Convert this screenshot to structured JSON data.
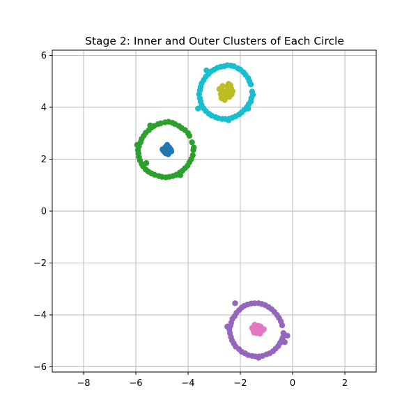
{
  "chart_data": {
    "type": "scatter",
    "title": "Stage 2: Inner and Outer Clusters of Each Circle",
    "xlabel": "",
    "ylabel": "",
    "xlim": [
      -9.2,
      3.2
    ],
    "ylim": [
      -6.2,
      6.2
    ],
    "xticks": [
      -8,
      -6,
      -4,
      -2,
      0,
      2
    ],
    "yticks": [
      -6,
      -4,
      -2,
      0,
      2,
      4,
      6
    ],
    "xtick_labels": [
      "−8",
      "−6",
      "−4",
      "−2",
      "0",
      "2"
    ],
    "ytick_labels": [
      "−6",
      "−4",
      "−2",
      "0",
      "2",
      "4",
      "6"
    ],
    "grid": true,
    "series": [
      {
        "role": "inner",
        "color": "#1f77b4",
        "points": [
          [
            -4.82,
            2.35
          ],
          [
            -4.75,
            2.42
          ],
          [
            -4.88,
            2.3
          ],
          [
            -4.7,
            2.28
          ],
          [
            -4.92,
            2.4
          ],
          [
            -4.78,
            2.5
          ],
          [
            -4.85,
            2.22
          ],
          [
            -4.66,
            2.36
          ],
          [
            -4.95,
            2.33
          ],
          [
            -4.8,
            2.55
          ],
          [
            -4.72,
            2.45
          ],
          [
            -4.9,
            2.27
          ],
          [
            -4.76,
            2.19
          ],
          [
            -4.64,
            2.3
          ],
          [
            -4.86,
            2.47
          ],
          [
            -4.98,
            2.38
          ],
          [
            -4.69,
            2.4
          ]
        ]
      },
      {
        "role": "outer",
        "color": "#2ca02c",
        "points": [
          [
            -3.8,
            2.35
          ],
          [
            -3.85,
            2.65
          ],
          [
            -3.95,
            2.9
          ],
          [
            -4.12,
            3.12
          ],
          [
            -4.35,
            3.28
          ],
          [
            -4.6,
            3.4
          ],
          [
            -4.88,
            3.42
          ],
          [
            -5.15,
            3.35
          ],
          [
            -5.4,
            3.22
          ],
          [
            -5.62,
            3.02
          ],
          [
            -5.78,
            2.78
          ],
          [
            -5.88,
            2.5
          ],
          [
            -5.9,
            2.22
          ],
          [
            -5.84,
            1.95
          ],
          [
            -5.72,
            1.72
          ],
          [
            -5.52,
            1.52
          ],
          [
            -5.28,
            1.4
          ],
          [
            -5.0,
            1.32
          ],
          [
            -4.72,
            1.32
          ],
          [
            -4.45,
            1.4
          ],
          [
            -4.22,
            1.55
          ],
          [
            -4.02,
            1.75
          ],
          [
            -3.88,
            2.0
          ],
          [
            -3.82,
            2.15
          ],
          [
            -4.0,
            3.0
          ],
          [
            -4.25,
            3.2
          ],
          [
            -4.5,
            3.35
          ],
          [
            -4.75,
            3.44
          ],
          [
            -5.05,
            3.38
          ],
          [
            -5.3,
            3.28
          ],
          [
            -5.5,
            3.12
          ],
          [
            -5.7,
            2.9
          ],
          [
            -5.82,
            2.65
          ],
          [
            -5.92,
            2.35
          ],
          [
            -5.88,
            2.08
          ],
          [
            -5.78,
            1.82
          ],
          [
            -5.62,
            1.6
          ],
          [
            -5.4,
            1.45
          ],
          [
            -5.12,
            1.35
          ],
          [
            -4.85,
            1.3
          ],
          [
            -4.58,
            1.35
          ],
          [
            -4.32,
            1.48
          ],
          [
            -4.12,
            1.65
          ],
          [
            -3.95,
            1.88
          ],
          [
            -3.78,
            2.45
          ],
          [
            -5.45,
            3.3
          ],
          [
            -4.3,
            1.38
          ],
          [
            -5.95,
            2.55
          ],
          [
            -5.6,
            1.85
          ]
        ]
      },
      {
        "role": "inner",
        "color": "#bcbd22",
        "points": [
          [
            -2.55,
            4.6
          ],
          [
            -2.48,
            4.68
          ],
          [
            -2.62,
            4.52
          ],
          [
            -2.4,
            4.55
          ],
          [
            -2.7,
            4.65
          ],
          [
            -2.5,
            4.8
          ],
          [
            -2.65,
            4.4
          ],
          [
            -2.35,
            4.72
          ],
          [
            -2.75,
            4.5
          ],
          [
            -2.45,
            4.9
          ],
          [
            -2.58,
            4.35
          ],
          [
            -2.3,
            4.62
          ],
          [
            -2.8,
            4.7
          ],
          [
            -2.52,
            4.45
          ],
          [
            -2.38,
            4.85
          ],
          [
            -2.68,
            4.82
          ],
          [
            -2.6,
            4.28
          ],
          [
            -2.42,
            4.4
          ],
          [
            -2.72,
            4.35
          ],
          [
            -2.33,
            4.5
          ]
        ]
      },
      {
        "role": "outer",
        "color": "#17becf",
        "points": [
          [
            -1.55,
            4.6
          ],
          [
            -1.6,
            4.88
          ],
          [
            -1.7,
            5.12
          ],
          [
            -1.88,
            5.35
          ],
          [
            -2.1,
            5.5
          ],
          [
            -2.35,
            5.6
          ],
          [
            -2.62,
            5.58
          ],
          [
            -2.88,
            5.52
          ],
          [
            -3.12,
            5.38
          ],
          [
            -3.32,
            5.18
          ],
          [
            -3.48,
            4.92
          ],
          [
            -3.55,
            4.65
          ],
          [
            -3.55,
            4.35
          ],
          [
            -3.48,
            4.08
          ],
          [
            -3.32,
            3.85
          ],
          [
            -3.1,
            3.68
          ],
          [
            -2.85,
            3.58
          ],
          [
            -2.58,
            3.55
          ],
          [
            -2.3,
            3.6
          ],
          [
            -2.05,
            3.72
          ],
          [
            -1.85,
            3.9
          ],
          [
            -1.68,
            4.12
          ],
          [
            -1.58,
            4.35
          ],
          [
            -1.65,
            5.0
          ],
          [
            -1.8,
            5.25
          ],
          [
            -2.0,
            5.45
          ],
          [
            -2.25,
            5.58
          ],
          [
            -2.5,
            5.62
          ],
          [
            -2.75,
            5.56
          ],
          [
            -3.0,
            5.45
          ],
          [
            -3.22,
            5.28
          ],
          [
            -3.4,
            5.05
          ],
          [
            -3.52,
            4.78
          ],
          [
            -3.58,
            4.5
          ],
          [
            -3.52,
            4.22
          ],
          [
            -3.4,
            3.95
          ],
          [
            -3.2,
            3.75
          ],
          [
            -2.95,
            3.62
          ],
          [
            -2.7,
            3.55
          ],
          [
            -2.42,
            3.56
          ],
          [
            -2.18,
            3.65
          ],
          [
            -1.95,
            3.8
          ],
          [
            -1.75,
            4.0
          ],
          [
            -1.6,
            4.22
          ],
          [
            -1.52,
            4.48
          ],
          [
            -3.62,
            3.95
          ],
          [
            -3.3,
            5.42
          ],
          [
            -1.7,
            3.95
          ],
          [
            -2.45,
            3.5
          ]
        ]
      },
      {
        "role": "outer",
        "color": "#9467bd",
        "points": [
          [
            -0.35,
            -4.7
          ],
          [
            -0.4,
            -4.4
          ],
          [
            -0.52,
            -4.12
          ],
          [
            -0.7,
            -3.88
          ],
          [
            -0.92,
            -3.7
          ],
          [
            -1.18,
            -3.58
          ],
          [
            -1.45,
            -3.55
          ],
          [
            -1.72,
            -3.6
          ],
          [
            -1.95,
            -3.72
          ],
          [
            -2.15,
            -3.92
          ],
          [
            -2.3,
            -4.15
          ],
          [
            -2.38,
            -4.42
          ],
          [
            -2.4,
            -4.7
          ],
          [
            -2.32,
            -4.98
          ],
          [
            -2.18,
            -5.22
          ],
          [
            -1.95,
            -5.42
          ],
          [
            -1.7,
            -5.55
          ],
          [
            -1.42,
            -5.6
          ],
          [
            -1.15,
            -5.58
          ],
          [
            -0.88,
            -5.48
          ],
          [
            -0.65,
            -5.3
          ],
          [
            -0.48,
            -5.08
          ],
          [
            -0.38,
            -4.88
          ],
          [
            -0.45,
            -4.25
          ],
          [
            -0.6,
            -4.0
          ],
          [
            -0.8,
            -3.78
          ],
          [
            -1.05,
            -3.62
          ],
          [
            -1.3,
            -3.55
          ],
          [
            -1.58,
            -3.56
          ],
          [
            -1.85,
            -3.65
          ],
          [
            -2.05,
            -3.82
          ],
          [
            -2.22,
            -4.05
          ],
          [
            -2.35,
            -4.3
          ],
          [
            -2.42,
            -4.56
          ],
          [
            -2.36,
            -4.85
          ],
          [
            -2.25,
            -5.1
          ],
          [
            -2.05,
            -5.32
          ],
          [
            -1.82,
            -5.48
          ],
          [
            -1.55,
            -5.58
          ],
          [
            -1.28,
            -5.6
          ],
          [
            -1.0,
            -5.52
          ],
          [
            -0.75,
            -5.4
          ],
          [
            -0.55,
            -5.2
          ],
          [
            -0.42,
            -4.98
          ],
          [
            -0.2,
            -4.8
          ],
          [
            -2.2,
            -3.55
          ],
          [
            -0.3,
            -5.05
          ],
          [
            -2.5,
            -4.45
          ],
          [
            -1.3,
            -5.65
          ]
        ]
      },
      {
        "role": "inner",
        "color": "#e377c2",
        "points": [
          [
            -1.35,
            -4.55
          ],
          [
            -1.28,
            -4.62
          ],
          [
            -1.42,
            -4.48
          ],
          [
            -1.2,
            -4.52
          ],
          [
            -1.5,
            -4.6
          ],
          [
            -1.3,
            -4.42
          ],
          [
            -1.38,
            -4.7
          ],
          [
            -1.15,
            -4.6
          ],
          [
            -1.45,
            -4.38
          ],
          [
            -1.25,
            -4.72
          ],
          [
            -1.55,
            -4.5
          ],
          [
            -1.32,
            -4.65
          ],
          [
            -1.4,
            -4.58
          ],
          [
            -1.22,
            -4.45
          ],
          [
            -1.48,
            -4.68
          ],
          [
            -1.1,
            -4.55
          ]
        ]
      }
    ]
  }
}
